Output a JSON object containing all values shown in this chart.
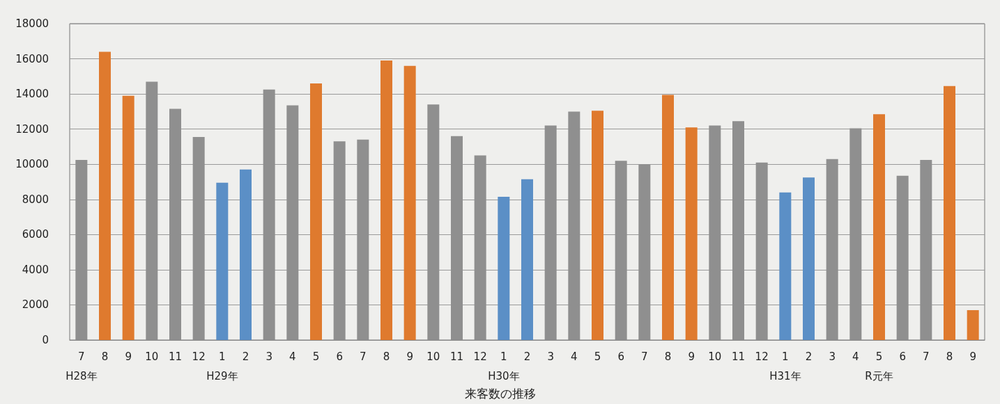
{
  "chart_data": {
    "type": "bar",
    "title": "来客数の推移",
    "categories": [
      "7\nH28年",
      "8",
      "9",
      "10",
      "11",
      "12",
      "1\nH29年",
      "2",
      "3",
      "4",
      "5",
      "6",
      "7",
      "8",
      "9",
      "10",
      "11",
      "12",
      "1\nH30年",
      "2",
      "3",
      "4",
      "5",
      "6",
      "7",
      "8",
      "9",
      "10",
      "11",
      "12",
      "1\nH31年",
      "2",
      "3",
      "4",
      "5\nR元年",
      "6",
      "7",
      "8",
      "9"
    ],
    "values": [
      10250,
      16400,
      13900,
      14700,
      13150,
      11550,
      8950,
      9700,
      14250,
      13350,
      14600,
      11300,
      11400,
      15900,
      15600,
      13400,
      11600,
      10500,
      8150,
      9150,
      12200,
      13000,
      13050,
      10200,
      10000,
      13950,
      12100,
      12200,
      12450,
      10100,
      8400,
      9250,
      10300,
      12050,
      12850,
      9350,
      10250,
      14450,
      1700
    ],
    "colors": [
      "#8f8f8f",
      "#df7a2e",
      "#df7a2e",
      "#8f8f8f",
      "#8f8f8f",
      "#8f8f8f",
      "#5b8fc6",
      "#5b8fc6",
      "#8f8f8f",
      "#8f8f8f",
      "#df7a2e",
      "#8f8f8f",
      "#8f8f8f",
      "#df7a2e",
      "#df7a2e",
      "#8f8f8f",
      "#8f8f8f",
      "#8f8f8f",
      "#5b8fc6",
      "#5b8fc6",
      "#8f8f8f",
      "#8f8f8f",
      "#df7a2e",
      "#8f8f8f",
      "#8f8f8f",
      "#df7a2e",
      "#df7a2e",
      "#8f8f8f",
      "#8f8f8f",
      "#8f8f8f",
      "#5b8fc6",
      "#5b8fc6",
      "#8f8f8f",
      "#8f8f8f",
      "#df7a2e",
      "#8f8f8f",
      "#8f8f8f",
      "#df7a2e",
      "#df7a2e"
    ],
    "ylim": [
      0,
      18000
    ],
    "yticks": [
      0,
      2000,
      4000,
      6000,
      8000,
      10000,
      12000,
      14000,
      16000,
      18000
    ],
    "grid": "y"
  }
}
